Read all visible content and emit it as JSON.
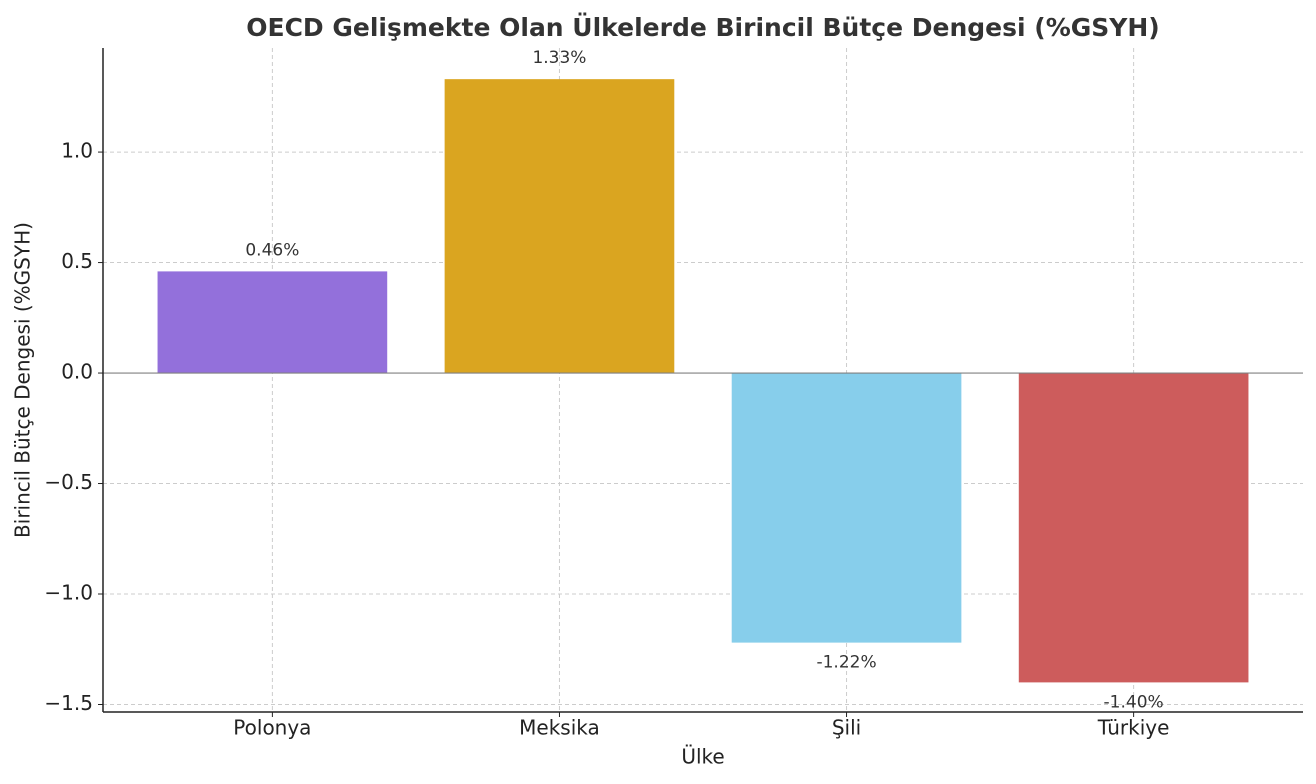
{
  "chart_data": {
    "type": "bar",
    "title": "OECD Gelişmekte Olan Ülkelerde Birincil Bütçe Dengesi (%GSYH)",
    "x_label": "Ülke",
    "y_label": "Birincil Bütçe Dengesi (%GSYH)",
    "categories": [
      "Polonya",
      "Meksika",
      "Şili",
      "Türkiye"
    ],
    "values": [
      0.46,
      1.33,
      -1.22,
      -1.4
    ],
    "value_labels": [
      "0.46%",
      "1.33%",
      "-1.22%",
      "-1.40%"
    ],
    "colors": [
      "#9370db",
      "#daa520",
      "#87ceeb",
      "#cd5c5c"
    ],
    "ylim": [
      -1.534,
      1.471
    ],
    "yticks": [
      {
        "value": -1.5,
        "label": "−1.5"
      },
      {
        "value": -1.0,
        "label": "−1.0"
      },
      {
        "value": -0.5,
        "label": "−0.5"
      },
      {
        "value": 0,
        "label": "0.0"
      },
      {
        "value": 0.5,
        "label": "0.5"
      },
      {
        "value": 1.0,
        "label": "1.0"
      }
    ],
    "grid": true
  }
}
